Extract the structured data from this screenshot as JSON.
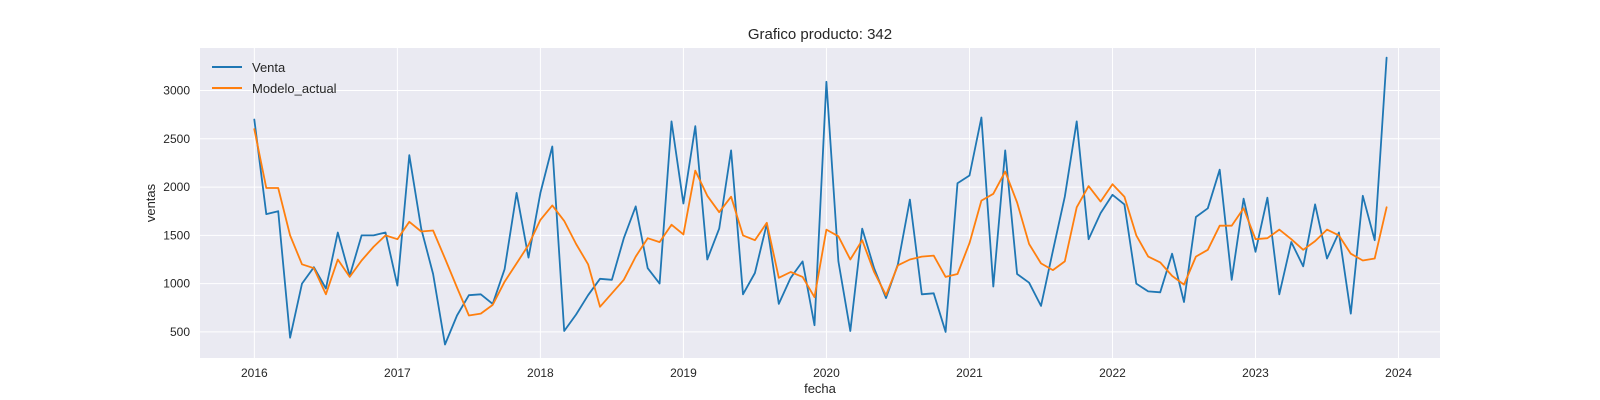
{
  "chart_data": {
    "type": "line",
    "title": "Grafico producto: 342",
    "xlabel": "fecha",
    "ylabel": "ventas",
    "x_start": "2016-01",
    "x_freq": "monthly",
    "xlim": [
      2015.62,
      2024.29
    ],
    "ylim": [
      230,
      3440
    ],
    "x_ticks": [
      {
        "value": 2016,
        "label": "2016"
      },
      {
        "value": 2017,
        "label": "2017"
      },
      {
        "value": 2018,
        "label": "2018"
      },
      {
        "value": 2019,
        "label": "2019"
      },
      {
        "value": 2020,
        "label": "2020"
      },
      {
        "value": 2021,
        "label": "2021"
      },
      {
        "value": 2022,
        "label": "2022"
      },
      {
        "value": 2023,
        "label": "2023"
      },
      {
        "value": 2024,
        "label": "2024"
      }
    ],
    "y_ticks": [
      {
        "value": 500,
        "label": "500"
      },
      {
        "value": 1000,
        "label": "1000"
      },
      {
        "value": 1500,
        "label": "1500"
      },
      {
        "value": 2000,
        "label": "2000"
      },
      {
        "value": 2500,
        "label": "2500"
      },
      {
        "value": 3000,
        "label": "3000"
      }
    ],
    "grid": true,
    "legend": "upper-left",
    "background": "#eaeaf2",
    "series": [
      {
        "name": "Venta",
        "color": "#1f77b4",
        "values": [
          2700,
          1720,
          1750,
          440,
          1000,
          1170,
          950,
          1530,
          1080,
          1500,
          1500,
          1530,
          980,
          2330,
          1570,
          1100,
          370,
          670,
          880,
          890,
          790,
          1150,
          1940,
          1270,
          1940,
          2420,
          510,
          680,
          880,
          1050,
          1040,
          1470,
          1800,
          1160,
          1000,
          2680,
          1830,
          2630,
          1250,
          1570,
          2380,
          890,
          1110,
          1620,
          790,
          1060,
          1230,
          570,
          3090,
          1230,
          510,
          1570,
          1160,
          850,
          1200,
          1870,
          890,
          900,
          500,
          2040,
          2120,
          2720,
          970,
          2380,
          1100,
          1010,
          770,
          1340,
          1900,
          2680,
          1460,
          1730,
          1920,
          1820,
          1000,
          920,
          910,
          1310,
          810,
          1690,
          1780,
          2180,
          1040,
          1880,
          1330,
          1890,
          890,
          1430,
          1180,
          1820,
          1260,
          1530,
          690,
          1910,
          1450,
          3340
        ]
      },
      {
        "name": "Modelo_actual",
        "color": "#ff7f0e",
        "values": [
          2600,
          1990,
          1990,
          1500,
          1200,
          1160,
          890,
          1250,
          1070,
          1240,
          1380,
          1500,
          1460,
          1640,
          1540,
          1550,
          1260,
          960,
          670,
          690,
          780,
          1020,
          1210,
          1400,
          1660,
          1810,
          1650,
          1410,
          1200,
          760,
          900,
          1040,
          1280,
          1470,
          1430,
          1610,
          1510,
          2170,
          1910,
          1740,
          1900,
          1500,
          1450,
          1630,
          1060,
          1120,
          1070,
          860,
          1560,
          1490,
          1250,
          1450,
          1120,
          880,
          1190,
          1250,
          1280,
          1290,
          1070,
          1100,
          1420,
          1860,
          1930,
          2160,
          1840,
          1410,
          1210,
          1140,
          1230,
          1790,
          2010,
          1850,
          2030,
          1900,
          1500,
          1280,
          1220,
          1080,
          990,
          1280,
          1350,
          1600,
          1600,
          1780,
          1460,
          1470,
          1560,
          1460,
          1350,
          1440,
          1560,
          1500,
          1310,
          1240,
          1260,
          1790
        ]
      }
    ]
  }
}
